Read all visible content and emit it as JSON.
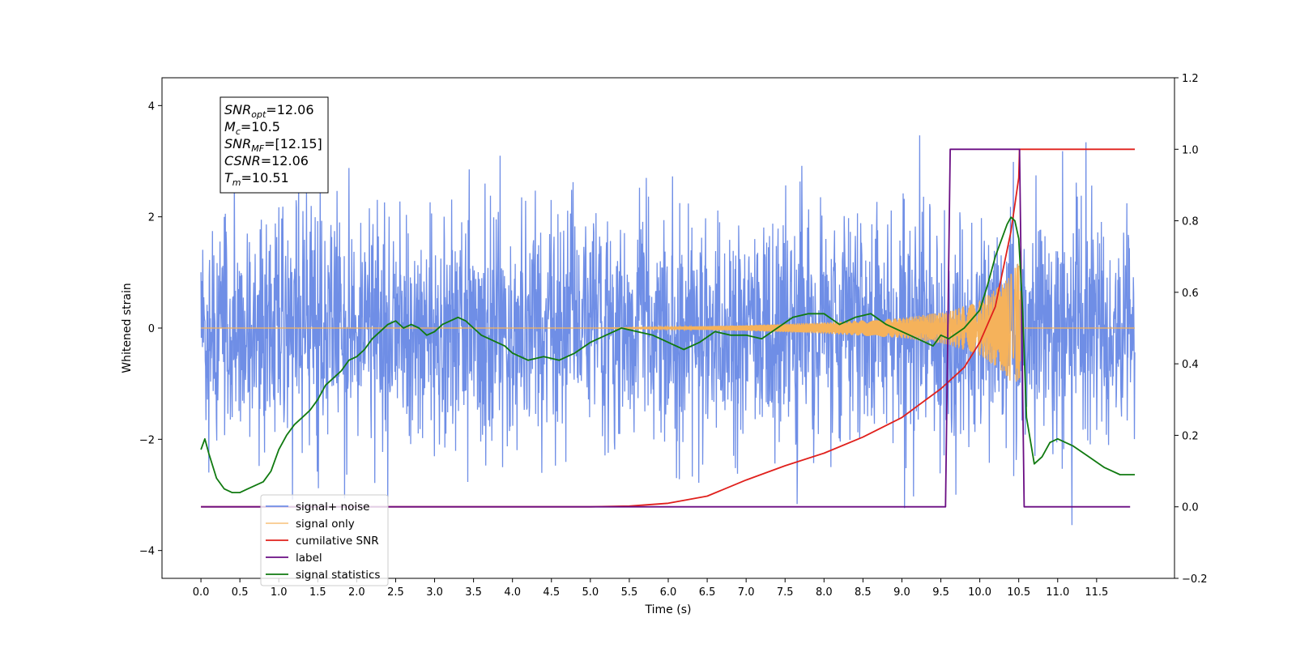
{
  "chart_data": {
    "type": "line",
    "xlabel": "Time (s)",
    "ylabel": "Whitened strain",
    "xlim": [
      -0.5,
      12.5
    ],
    "ylim": [
      -4.5,
      4.5
    ],
    "y2lim": [
      -0.2,
      1.2
    ],
    "x_ticks": [
      "0.0",
      "0.5",
      "1.0",
      "1.5",
      "2.0",
      "2.5",
      "3.0",
      "3.5",
      "4.0",
      "4.5",
      "5.0",
      "5.5",
      "6.0",
      "6.5",
      "7.0",
      "7.5",
      "8.0",
      "8.5",
      "9.0",
      "9.5",
      "10.0",
      "10.5",
      "11.0",
      "11.5"
    ],
    "y_ticks": [
      "4",
      "2",
      "0",
      "−2",
      "−4"
    ],
    "y2_ticks": [
      "1.2",
      "1.0",
      "0.8",
      "0.6",
      "0.4",
      "0.2",
      "0.0",
      "−0.2"
    ],
    "legend_position": "lower-left",
    "annotation": {
      "lines": [
        {
          "base": "SNR",
          "sub": "opt",
          "rest": "=12.06"
        },
        {
          "base": "M",
          "sub": "c",
          "rest": "=10.5"
        },
        {
          "base": "SNR",
          "sub": "MF",
          "rest": "=[12.15]"
        },
        {
          "base": "CSNR",
          "sub": "",
          "rest": "=12.06"
        },
        {
          "base": "T",
          "sub": "m",
          "rest": "=10.51"
        }
      ]
    },
    "series": [
      {
        "name": "signal+ noise",
        "color": "#6f8ee6",
        "axis": "left",
        "kind": "noise",
        "x_range": [
          0,
          11.99
        ],
        "std": 1.05,
        "min": -4.1,
        "max": 4.1
      },
      {
        "name": "signal only",
        "color": "#f5b25b",
        "axis": "left",
        "kind": "chirp",
        "x_range": [
          0,
          11.99
        ],
        "merger_time": 10.51,
        "envelope": {
          "x": [
            0,
            5.0,
            6.0,
            7.0,
            8.0,
            9.0,
            9.6,
            10.0,
            10.3,
            10.51,
            10.56
          ],
          "y": [
            0.0,
            0.0,
            0.02,
            0.05,
            0.1,
            0.18,
            0.3,
            0.5,
            0.8,
            1.2,
            0.0
          ]
        }
      },
      {
        "name": "cumilative SNR",
        "color": "#e0201c",
        "axis": "right",
        "x": [
          0,
          5.0,
          5.5,
          6.0,
          6.5,
          7.0,
          7.5,
          8.0,
          8.5,
          9.0,
          9.5,
          9.8,
          10.0,
          10.2,
          10.4,
          10.5,
          10.51,
          11.99
        ],
        "y": [
          0,
          0,
          0.002,
          0.01,
          0.03,
          0.075,
          0.115,
          0.15,
          0.195,
          0.25,
          0.33,
          0.39,
          0.46,
          0.56,
          0.77,
          0.92,
          1.0,
          1.0
        ]
      },
      {
        "name": "label",
        "color": "#6a0d83",
        "axis": "right",
        "x": [
          0,
          9.56,
          9.62,
          10.51,
          10.57,
          11.93
        ],
        "y": [
          0,
          0,
          1,
          1,
          0,
          0
        ]
      },
      {
        "name": "signal statistics",
        "color": "#107a10",
        "axis": "right",
        "x": [
          0,
          0.05,
          0.1,
          0.2,
          0.3,
          0.4,
          0.5,
          0.6,
          0.7,
          0.8,
          0.9,
          1.0,
          1.1,
          1.2,
          1.3,
          1.4,
          1.5,
          1.6,
          1.7,
          1.8,
          1.9,
          2.0,
          2.1,
          2.2,
          2.3,
          2.4,
          2.5,
          2.6,
          2.7,
          2.8,
          2.9,
          3.0,
          3.1,
          3.2,
          3.3,
          3.4,
          3.5,
          3.6,
          3.7,
          3.8,
          3.9,
          4.0,
          4.2,
          4.4,
          4.6,
          4.8,
          5.0,
          5.2,
          5.4,
          5.6,
          5.8,
          6.0,
          6.2,
          6.4,
          6.6,
          6.8,
          7.0,
          7.2,
          7.4,
          7.6,
          7.8,
          8.0,
          8.2,
          8.4,
          8.6,
          8.8,
          9.0,
          9.2,
          9.4,
          9.5,
          9.6,
          9.8,
          10.0,
          10.1,
          10.2,
          10.3,
          10.35,
          10.4,
          10.45,
          10.5,
          10.55,
          10.6,
          10.7,
          10.8,
          10.9,
          11.0,
          11.2,
          11.4,
          11.6,
          11.8,
          11.99
        ],
        "y": [
          0.16,
          0.19,
          0.15,
          0.08,
          0.05,
          0.04,
          0.04,
          0.05,
          0.06,
          0.07,
          0.1,
          0.16,
          0.2,
          0.23,
          0.25,
          0.27,
          0.3,
          0.34,
          0.36,
          0.38,
          0.41,
          0.42,
          0.44,
          0.47,
          0.49,
          0.51,
          0.52,
          0.5,
          0.51,
          0.5,
          0.48,
          0.49,
          0.51,
          0.52,
          0.53,
          0.52,
          0.5,
          0.48,
          0.47,
          0.46,
          0.45,
          0.43,
          0.41,
          0.42,
          0.41,
          0.43,
          0.46,
          0.48,
          0.5,
          0.49,
          0.48,
          0.46,
          0.44,
          0.46,
          0.49,
          0.48,
          0.48,
          0.47,
          0.5,
          0.53,
          0.54,
          0.54,
          0.51,
          0.53,
          0.54,
          0.51,
          0.49,
          0.47,
          0.45,
          0.48,
          0.47,
          0.5,
          0.55,
          0.62,
          0.7,
          0.76,
          0.79,
          0.81,
          0.8,
          0.75,
          0.55,
          0.25,
          0.12,
          0.14,
          0.18,
          0.19,
          0.17,
          0.14,
          0.11,
          0.09,
          0.09
        ]
      }
    ]
  }
}
